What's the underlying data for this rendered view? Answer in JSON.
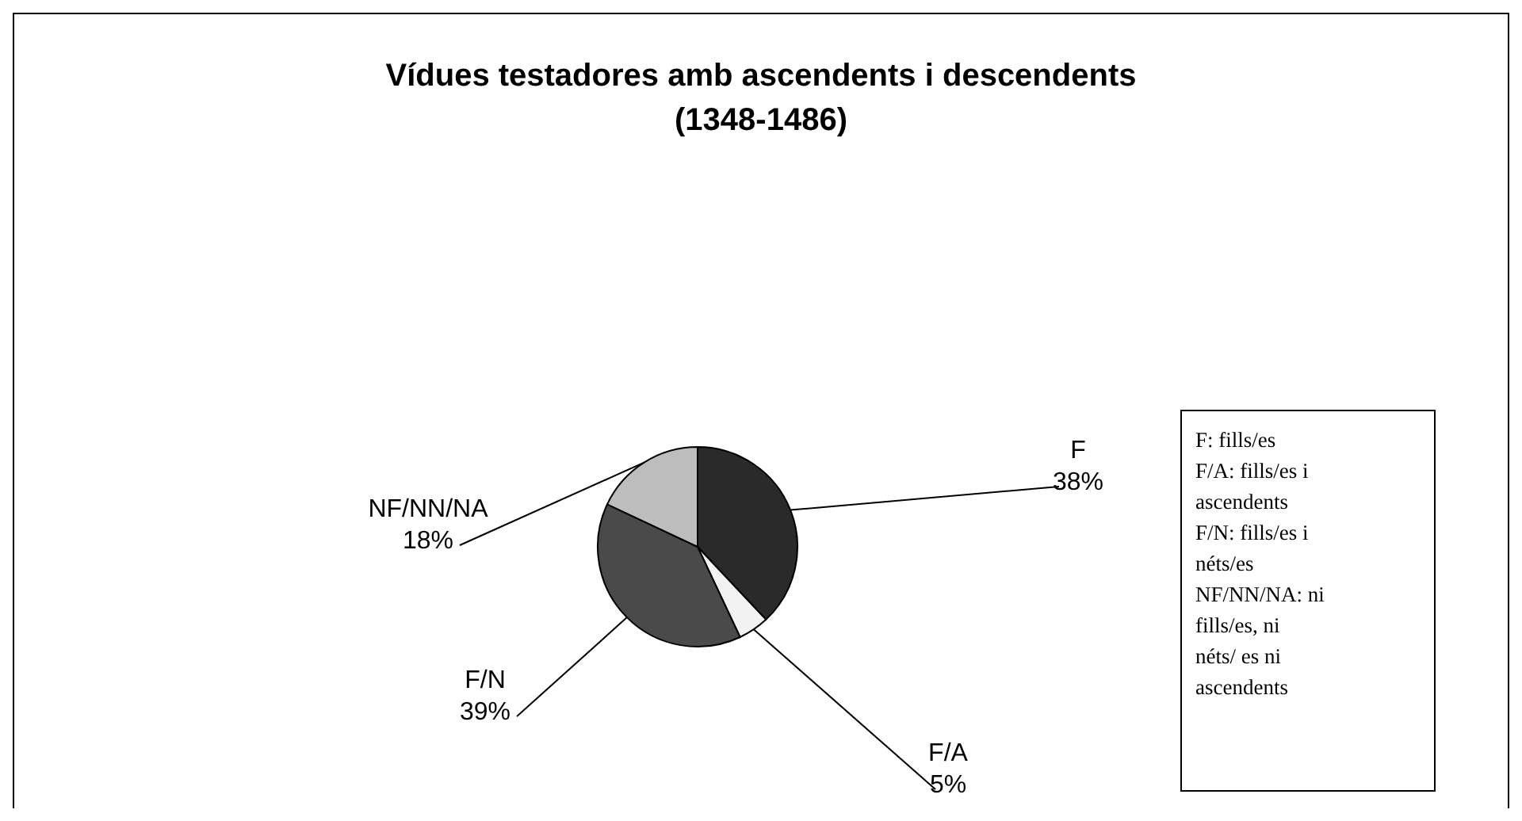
{
  "chart_data": {
    "type": "pie",
    "title": "Vídues testadores amb ascendents i descendents (1348-1486)",
    "categories": [
      "F",
      "F/A",
      "F/N",
      "NF/NN/NA"
    ],
    "values": [
      38,
      5,
      39,
      18
    ],
    "colors": [
      "#2a2a2a",
      "#f2f2f2",
      "#4a4a4a",
      "#bdbdbd"
    ],
    "value_labels": [
      "38%",
      "5%",
      "39%",
      "18%"
    ],
    "annotations": [
      "F: fills/es",
      "F/A: fills/es i ascendents",
      "F/N: fills/es i néts/es",
      "NF/NN/NA: ni fills/es, ni néts/ es ni ascendents"
    ]
  }
}
